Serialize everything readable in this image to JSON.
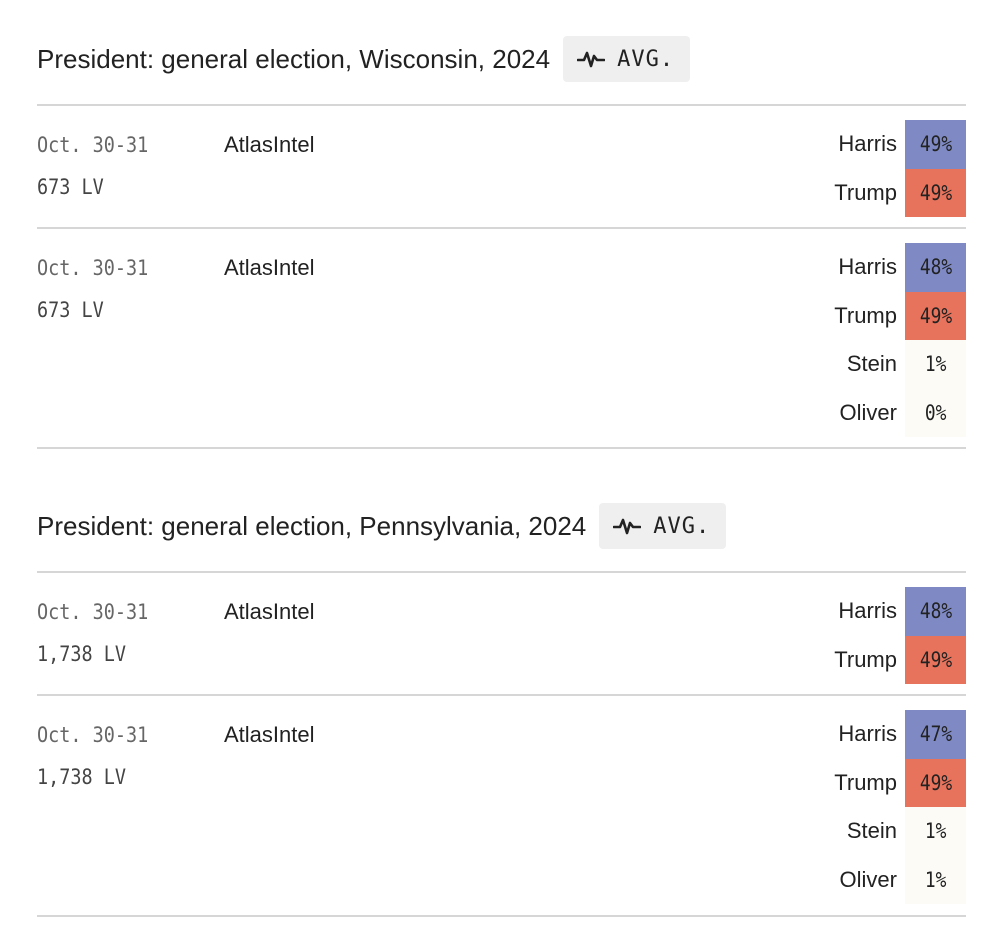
{
  "colors": {
    "harris": "#7f8ac5",
    "trump": "#e8735c",
    "other": "#fcfbf6"
  },
  "avg_icon": "pulse-line-icon",
  "races": [
    {
      "title": "President: general election, Wisconsin, 2024",
      "avg_label": "AVG.",
      "polls": [
        {
          "dates": "Oct. 30-31",
          "sample": "673 LV",
          "pollster": "AtlasIntel",
          "results": [
            {
              "name": "Harris",
              "value": "49%",
              "party": "harris"
            },
            {
              "name": "Trump",
              "value": "49%",
              "party": "trump"
            }
          ]
        },
        {
          "dates": "Oct. 30-31",
          "sample": "673 LV",
          "pollster": "AtlasIntel",
          "results": [
            {
              "name": "Harris",
              "value": "48%",
              "party": "harris"
            },
            {
              "name": "Trump",
              "value": "49%",
              "party": "trump"
            },
            {
              "name": "Stein",
              "value": "1%",
              "party": "other"
            },
            {
              "name": "Oliver",
              "value": "0%",
              "party": "other"
            }
          ]
        }
      ]
    },
    {
      "title": "President: general election, Pennsylvania, 2024",
      "avg_label": "AVG.",
      "polls": [
        {
          "dates": "Oct. 30-31",
          "sample": "1,738 LV",
          "pollster": "AtlasIntel",
          "results": [
            {
              "name": "Harris",
              "value": "48%",
              "party": "harris"
            },
            {
              "name": "Trump",
              "value": "49%",
              "party": "trump"
            }
          ]
        },
        {
          "dates": "Oct. 30-31",
          "sample": "1,738 LV",
          "pollster": "AtlasIntel",
          "results": [
            {
              "name": "Harris",
              "value": "47%",
              "party": "harris"
            },
            {
              "name": "Trump",
              "value": "49%",
              "party": "trump"
            },
            {
              "name": "Stein",
              "value": "1%",
              "party": "other"
            },
            {
              "name": "Oliver",
              "value": "1%",
              "party": "other"
            }
          ]
        }
      ]
    }
  ]
}
